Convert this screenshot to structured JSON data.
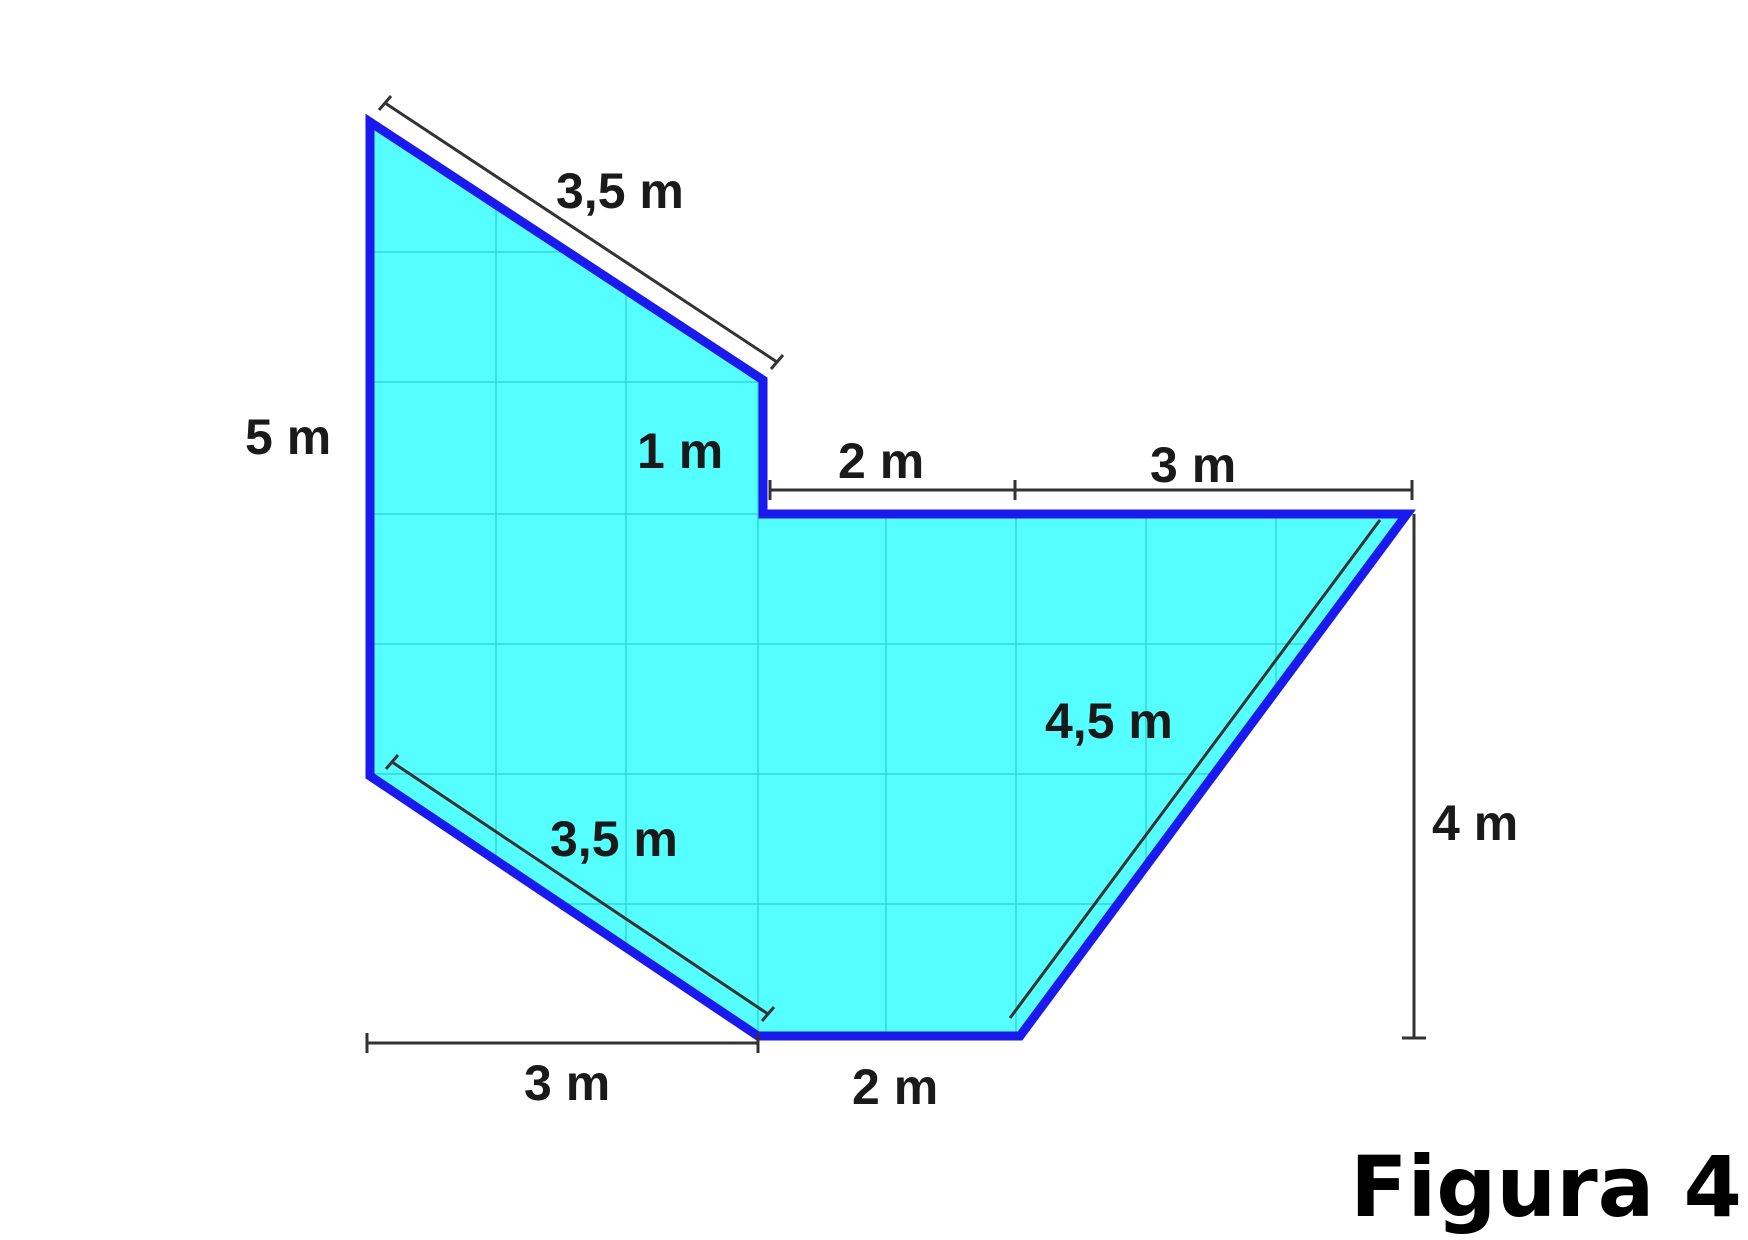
{
  "figure": {
    "caption": "Figura 4",
    "fill_color": "#55ffff",
    "outline_color": "#1a1aee",
    "labels": {
      "top_slant": "3,5 m",
      "left_side": "5 m",
      "inner_step": "1 m",
      "top_mid": "2 m",
      "top_right": "3 m",
      "right_slant": "4,5 m",
      "right_height": "4 m",
      "bottom_slant": "3,5 m",
      "bottom_left": "3 m",
      "bottom_base": "2 m"
    }
  }
}
